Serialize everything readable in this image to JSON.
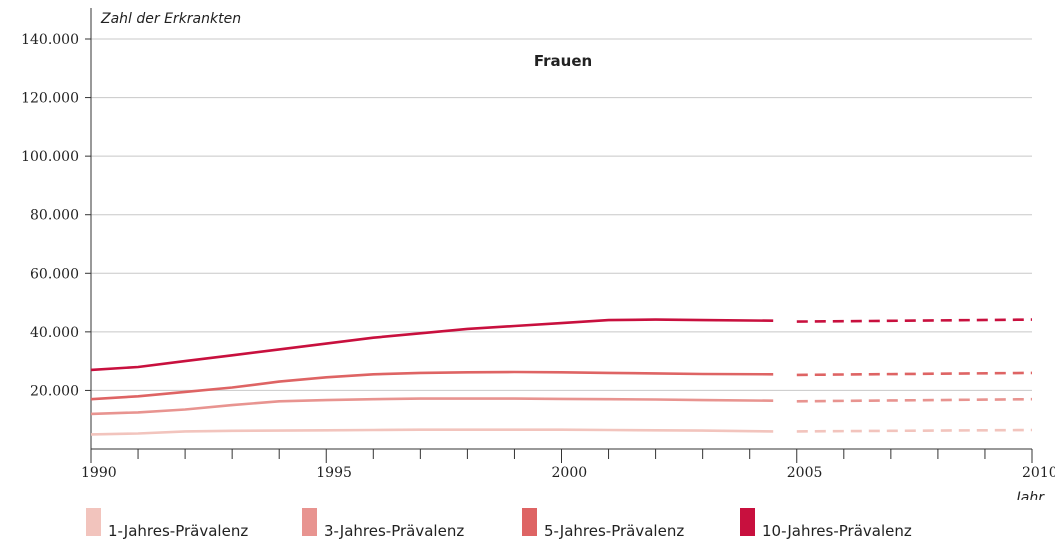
{
  "chart_data": {
    "type": "line",
    "title": "Frauen",
    "xlabel": "Jahr",
    "ylabel": "Zahl der Erkrankten",
    "xlim": [
      1990,
      2010
    ],
    "ylim": [
      0,
      140000
    ],
    "x_ticks": [
      1990,
      1995,
      2000,
      2005,
      2010
    ],
    "y_ticks": [
      20000,
      40000,
      60000,
      80000,
      100000,
      120000,
      140000
    ],
    "x_tick_labels": [
      "1990",
      "1995",
      "2000",
      "2005",
      "2010"
    ],
    "y_tick_labels": [
      "20.000",
      "40.000",
      "60.000",
      "80.000",
      "100.000",
      "120.000",
      "140.000"
    ],
    "grid": "horizontal",
    "legend": "bottom",
    "series": [
      {
        "name": "1-Jahres-Prävalenz",
        "color": "#f2c4bd",
        "observed": {
          "x": [
            1990,
            1991,
            1992,
            1993,
            1994,
            1995,
            1996,
            1997,
            1998,
            1999,
            2000,
            2001,
            2002,
            2003,
            2004.5
          ],
          "y": [
            5000,
            5300,
            6000,
            6200,
            6300,
            6400,
            6500,
            6600,
            6600,
            6600,
            6600,
            6500,
            6400,
            6300,
            6000
          ]
        },
        "projected": {
          "x": [
            2005,
            2010
          ],
          "y": [
            6000,
            6500
          ]
        }
      },
      {
        "name": "3-Jahres-Prävalenz",
        "color": "#e89490",
        "observed": {
          "x": [
            1990,
            1991,
            1992,
            1993,
            1994,
            1995,
            1996,
            1997,
            1998,
            1999,
            2000,
            2001,
            2002,
            2003,
            2004.5
          ],
          "y": [
            12000,
            12500,
            13500,
            15000,
            16300,
            16700,
            17000,
            17200,
            17200,
            17200,
            17100,
            17000,
            16900,
            16700,
            16500
          ]
        },
        "projected": {
          "x": [
            2005,
            2010
          ],
          "y": [
            16300,
            17000
          ]
        }
      },
      {
        "name": "5-Jahres-Prävalenz",
        "color": "#de6464",
        "observed": {
          "x": [
            1990,
            1991,
            1992,
            1993,
            1994,
            1995,
            1996,
            1997,
            1998,
            1999,
            2000,
            2001,
            2002,
            2003,
            2004.5
          ],
          "y": [
            17000,
            18000,
            19500,
            21000,
            23000,
            24500,
            25500,
            26000,
            26200,
            26300,
            26200,
            26000,
            25800,
            25600,
            25500
          ]
        },
        "projected": {
          "x": [
            2005,
            2010
          ],
          "y": [
            25300,
            26000
          ]
        }
      },
      {
        "name": "10-Jahres-Prävalenz",
        "color": "#c8103e",
        "observed": {
          "x": [
            1990,
            1991,
            1992,
            1993,
            1994,
            1995,
            1996,
            1997,
            1998,
            1999,
            2000,
            2001,
            2002,
            2003,
            2004.5
          ],
          "y": [
            27000,
            28000,
            30000,
            32000,
            34000,
            36000,
            38000,
            39500,
            41000,
            42000,
            43000,
            44000,
            44200,
            44000,
            43800
          ]
        },
        "projected": {
          "x": [
            2005,
            2010
          ],
          "y": [
            43500,
            44200
          ]
        }
      }
    ]
  }
}
